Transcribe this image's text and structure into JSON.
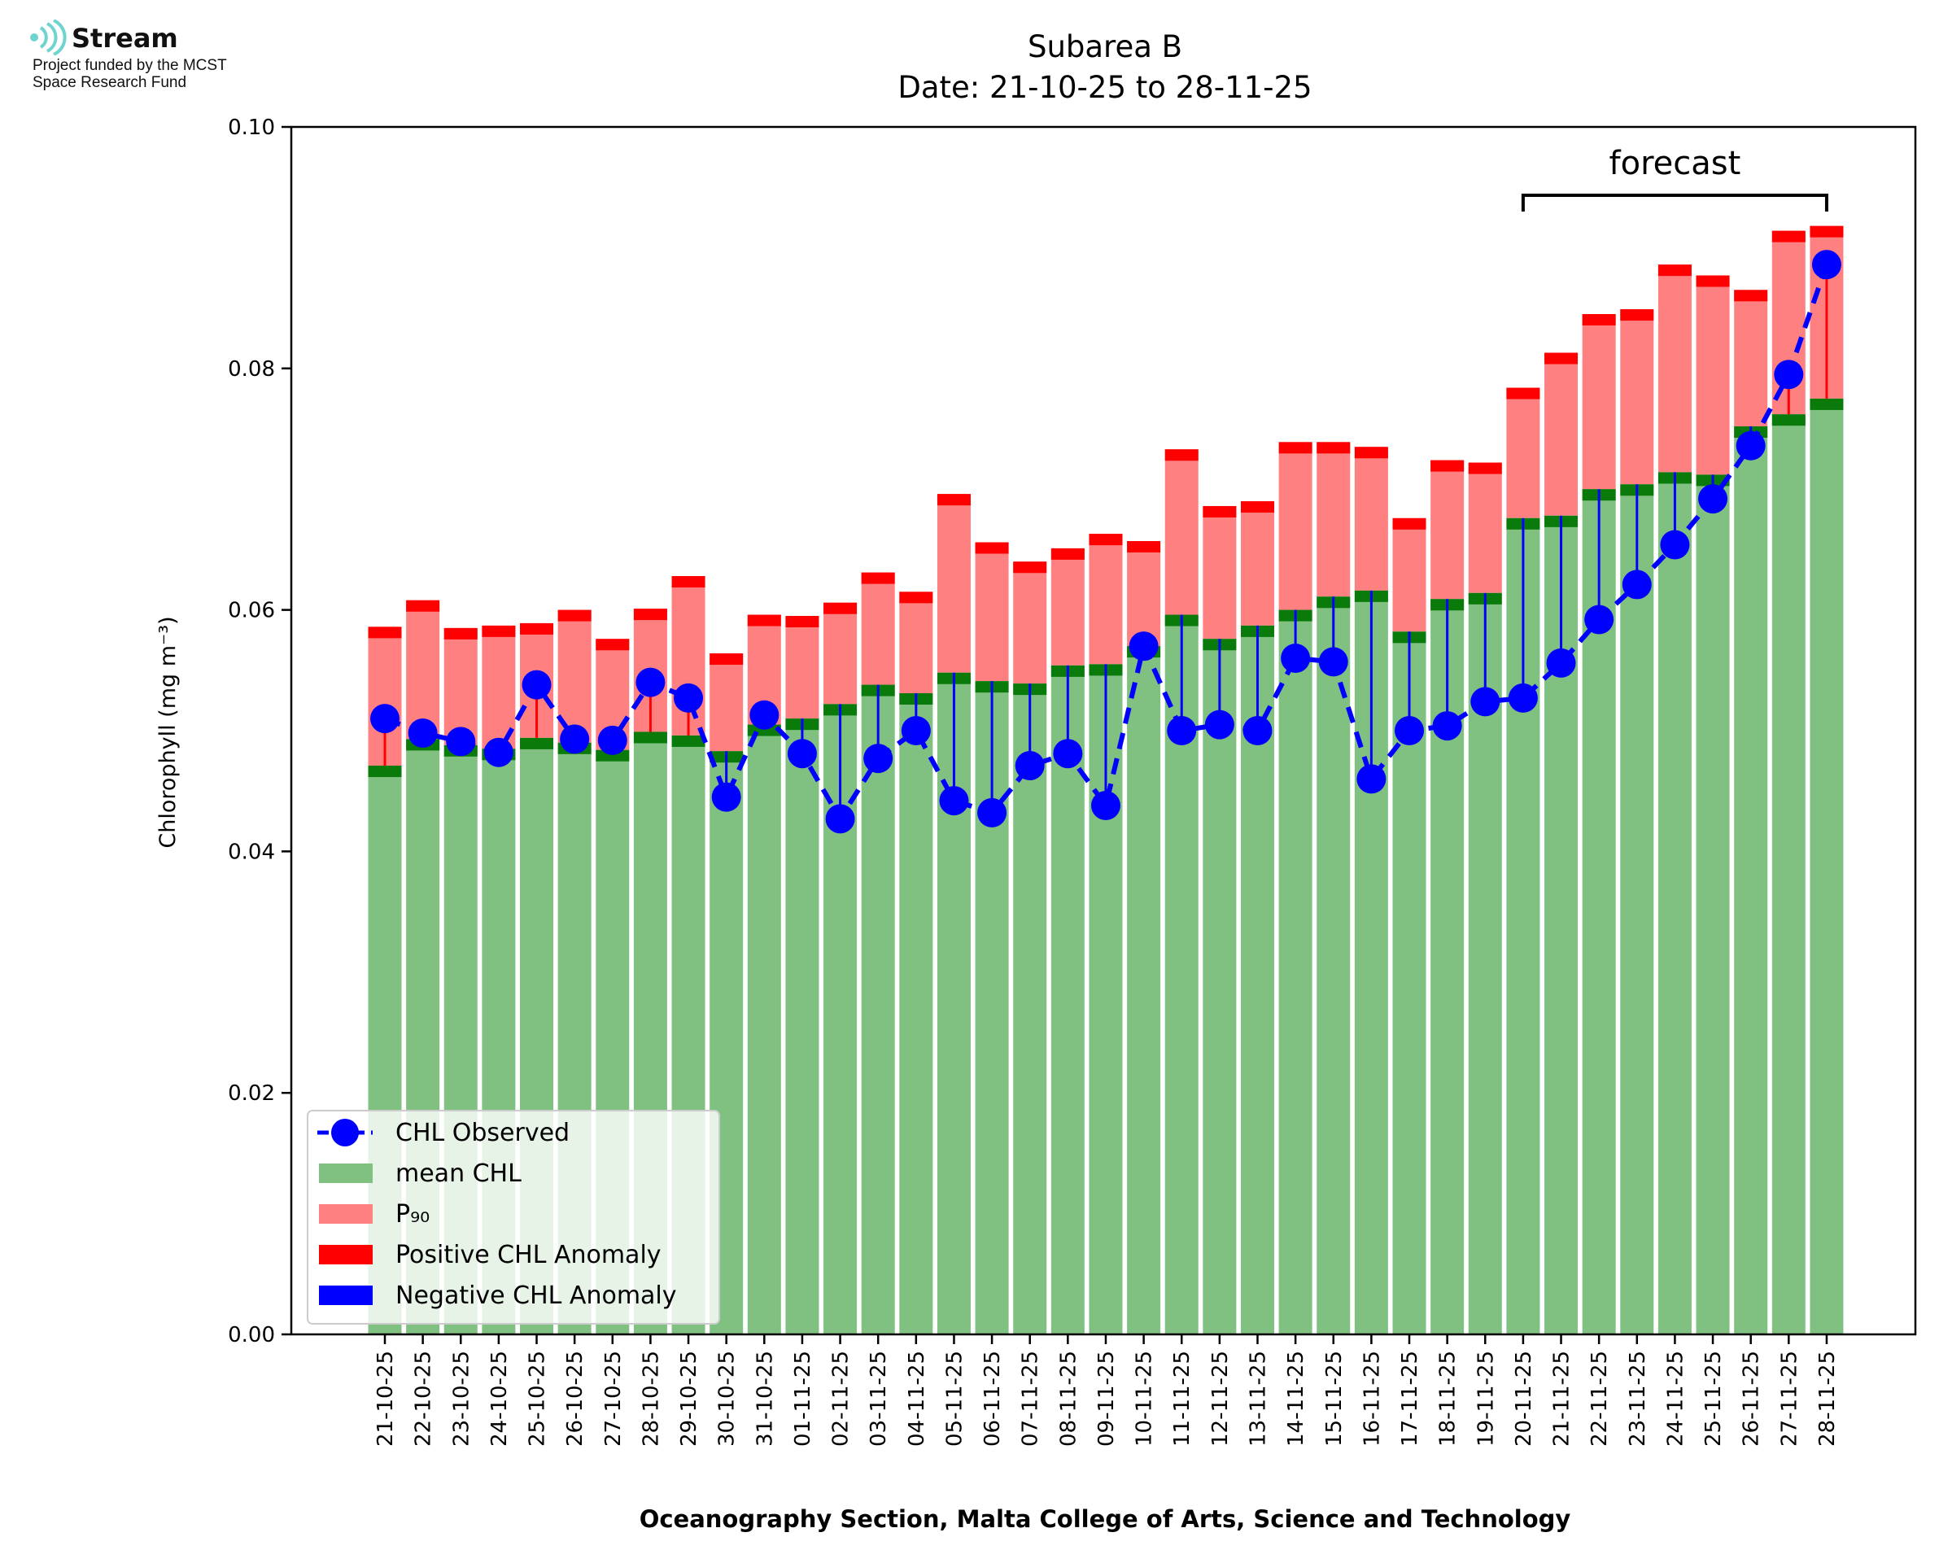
{
  "logo": {
    "name": "Stream",
    "line1": "Project funded by the MCST",
    "line2": "Space Research Fund"
  },
  "chart_data": {
    "type": "bar",
    "title": "Subarea B",
    "subtitle": "Date: 21-10-25 to 28-11-25",
    "xlabel": "Oceanography Section, Malta College of Arts, Science and Technology",
    "ylabel": "Chlorophyll (mg m⁻³)",
    "ylim": [
      0,
      0.1
    ],
    "yticks": [
      "0.00",
      "0.02",
      "0.04",
      "0.06",
      "0.08",
      "0.10"
    ],
    "grid": false,
    "legend_position": "bottom-left",
    "annotation": "forecast",
    "forecast_range": [
      "20-11-25",
      "28-11-25"
    ],
    "categories": [
      "21-10-25",
      "22-10-25",
      "23-10-25",
      "24-10-25",
      "25-10-25",
      "26-10-25",
      "27-10-25",
      "28-10-25",
      "29-10-25",
      "30-10-25",
      "31-10-25",
      "01-11-25",
      "02-11-25",
      "03-11-25",
      "04-11-25",
      "05-11-25",
      "06-11-25",
      "07-11-25",
      "08-11-25",
      "09-11-25",
      "10-11-25",
      "11-11-25",
      "12-11-25",
      "13-11-25",
      "14-11-25",
      "15-11-25",
      "16-11-25",
      "17-11-25",
      "18-11-25",
      "19-11-25",
      "20-11-25",
      "21-11-25",
      "22-11-25",
      "23-11-25",
      "24-11-25",
      "25-11-25",
      "26-11-25",
      "27-11-25",
      "28-11-25"
    ],
    "series": [
      {
        "name": "CHL Observed",
        "values": [
          0.051,
          0.0498,
          0.0491,
          0.0482,
          0.0538,
          0.0493,
          0.0492,
          0.054,
          0.0527,
          0.0445,
          0.0513,
          0.0481,
          0.0427,
          0.0477,
          0.05,
          0.0442,
          0.0432,
          0.0471,
          0.0481,
          0.0438,
          0.057,
          0.05,
          0.0505,
          0.05,
          0.056,
          0.0557,
          0.046,
          0.05,
          0.0504,
          0.0524,
          0.0527,
          0.0556,
          0.0592,
          0.0621,
          0.0654,
          0.0692,
          0.0736,
          0.0795,
          0.0886
        ]
      },
      {
        "name": "mean CHL",
        "values": [
          0.0471,
          0.0493,
          0.0488,
          0.0485,
          0.0494,
          0.049,
          0.0484,
          0.0499,
          0.0496,
          0.0483,
          0.0505,
          0.051,
          0.0522,
          0.0538,
          0.0531,
          0.0548,
          0.0541,
          0.0539,
          0.0554,
          0.0555,
          0.057,
          0.0596,
          0.0576,
          0.0587,
          0.06,
          0.0611,
          0.0616,
          0.0582,
          0.0609,
          0.0614,
          0.0676,
          0.0678,
          0.07,
          0.0704,
          0.0714,
          0.0712,
          0.0752,
          0.0762,
          0.0775
        ]
      },
      {
        "name": "P₉₀",
        "values": [
          0.0586,
          0.0608,
          0.0585,
          0.0587,
          0.0589,
          0.06,
          0.0576,
          0.0601,
          0.0628,
          0.0564,
          0.0596,
          0.0595,
          0.0606,
          0.0631,
          0.0615,
          0.0696,
          0.0656,
          0.064,
          0.0651,
          0.0663,
          0.0657,
          0.0733,
          0.0686,
          0.069,
          0.0739,
          0.0739,
          0.0735,
          0.0676,
          0.0724,
          0.0722,
          0.0784,
          0.0813,
          0.0845,
          0.0849,
          0.0886,
          0.0877,
          0.0865,
          0.0914,
          0.0918
        ]
      },
      {
        "name": "Positive CHL Anomaly",
        "color": "#ff0000"
      },
      {
        "name": "Negative CHL Anomaly",
        "color": "#0000ff"
      }
    ],
    "colors": {
      "observed": "#0000ff",
      "mean": "#80c080",
      "mean_cap": "#0a7a0a",
      "p90": "#ff8080",
      "p90_cap": "#ff0000",
      "positive": "#ff0000",
      "negative": "#0000ff"
    }
  }
}
